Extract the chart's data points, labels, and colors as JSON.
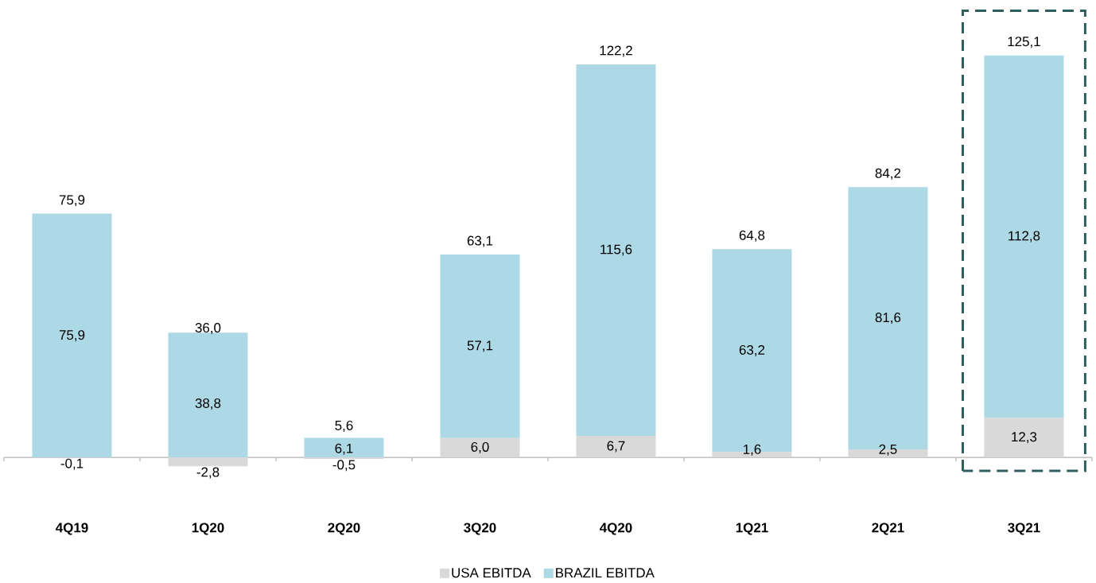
{
  "chart_data": {
    "type": "bar",
    "stacked": true,
    "categories": [
      "4Q19",
      "1Q20",
      "2Q20",
      "3Q20",
      "4Q20",
      "1Q21",
      "2Q21",
      "3Q21"
    ],
    "series": [
      {
        "name": "USA EBITDA",
        "color": "#d9d9d9",
        "values": [
          -0.1,
          -2.8,
          -0.5,
          6.0,
          6.7,
          1.6,
          2.5,
          12.3
        ],
        "value_labels": [
          "-0,1",
          "-2,8",
          "-0,5",
          "6,0",
          "6,7",
          "1,6",
          "2,5",
          "12,3"
        ]
      },
      {
        "name": "BRAZIL EBITDA",
        "color": "#add8e6",
        "values": [
          75.9,
          38.8,
          6.1,
          57.1,
          115.6,
          63.2,
          81.6,
          112.8
        ],
        "value_labels": [
          "75,9",
          "38,8",
          "6,1",
          "57,1",
          "115,6",
          "63,2",
          "81,6",
          "112,8"
        ]
      }
    ],
    "totals": [
      "75,9",
      "36,0",
      "5,6",
      "63,1",
      "122,2",
      "64,8",
      "84,2",
      "125,1"
    ],
    "ylim": [
      -4.2,
      139
    ],
    "legend": "bottom"
  }
}
